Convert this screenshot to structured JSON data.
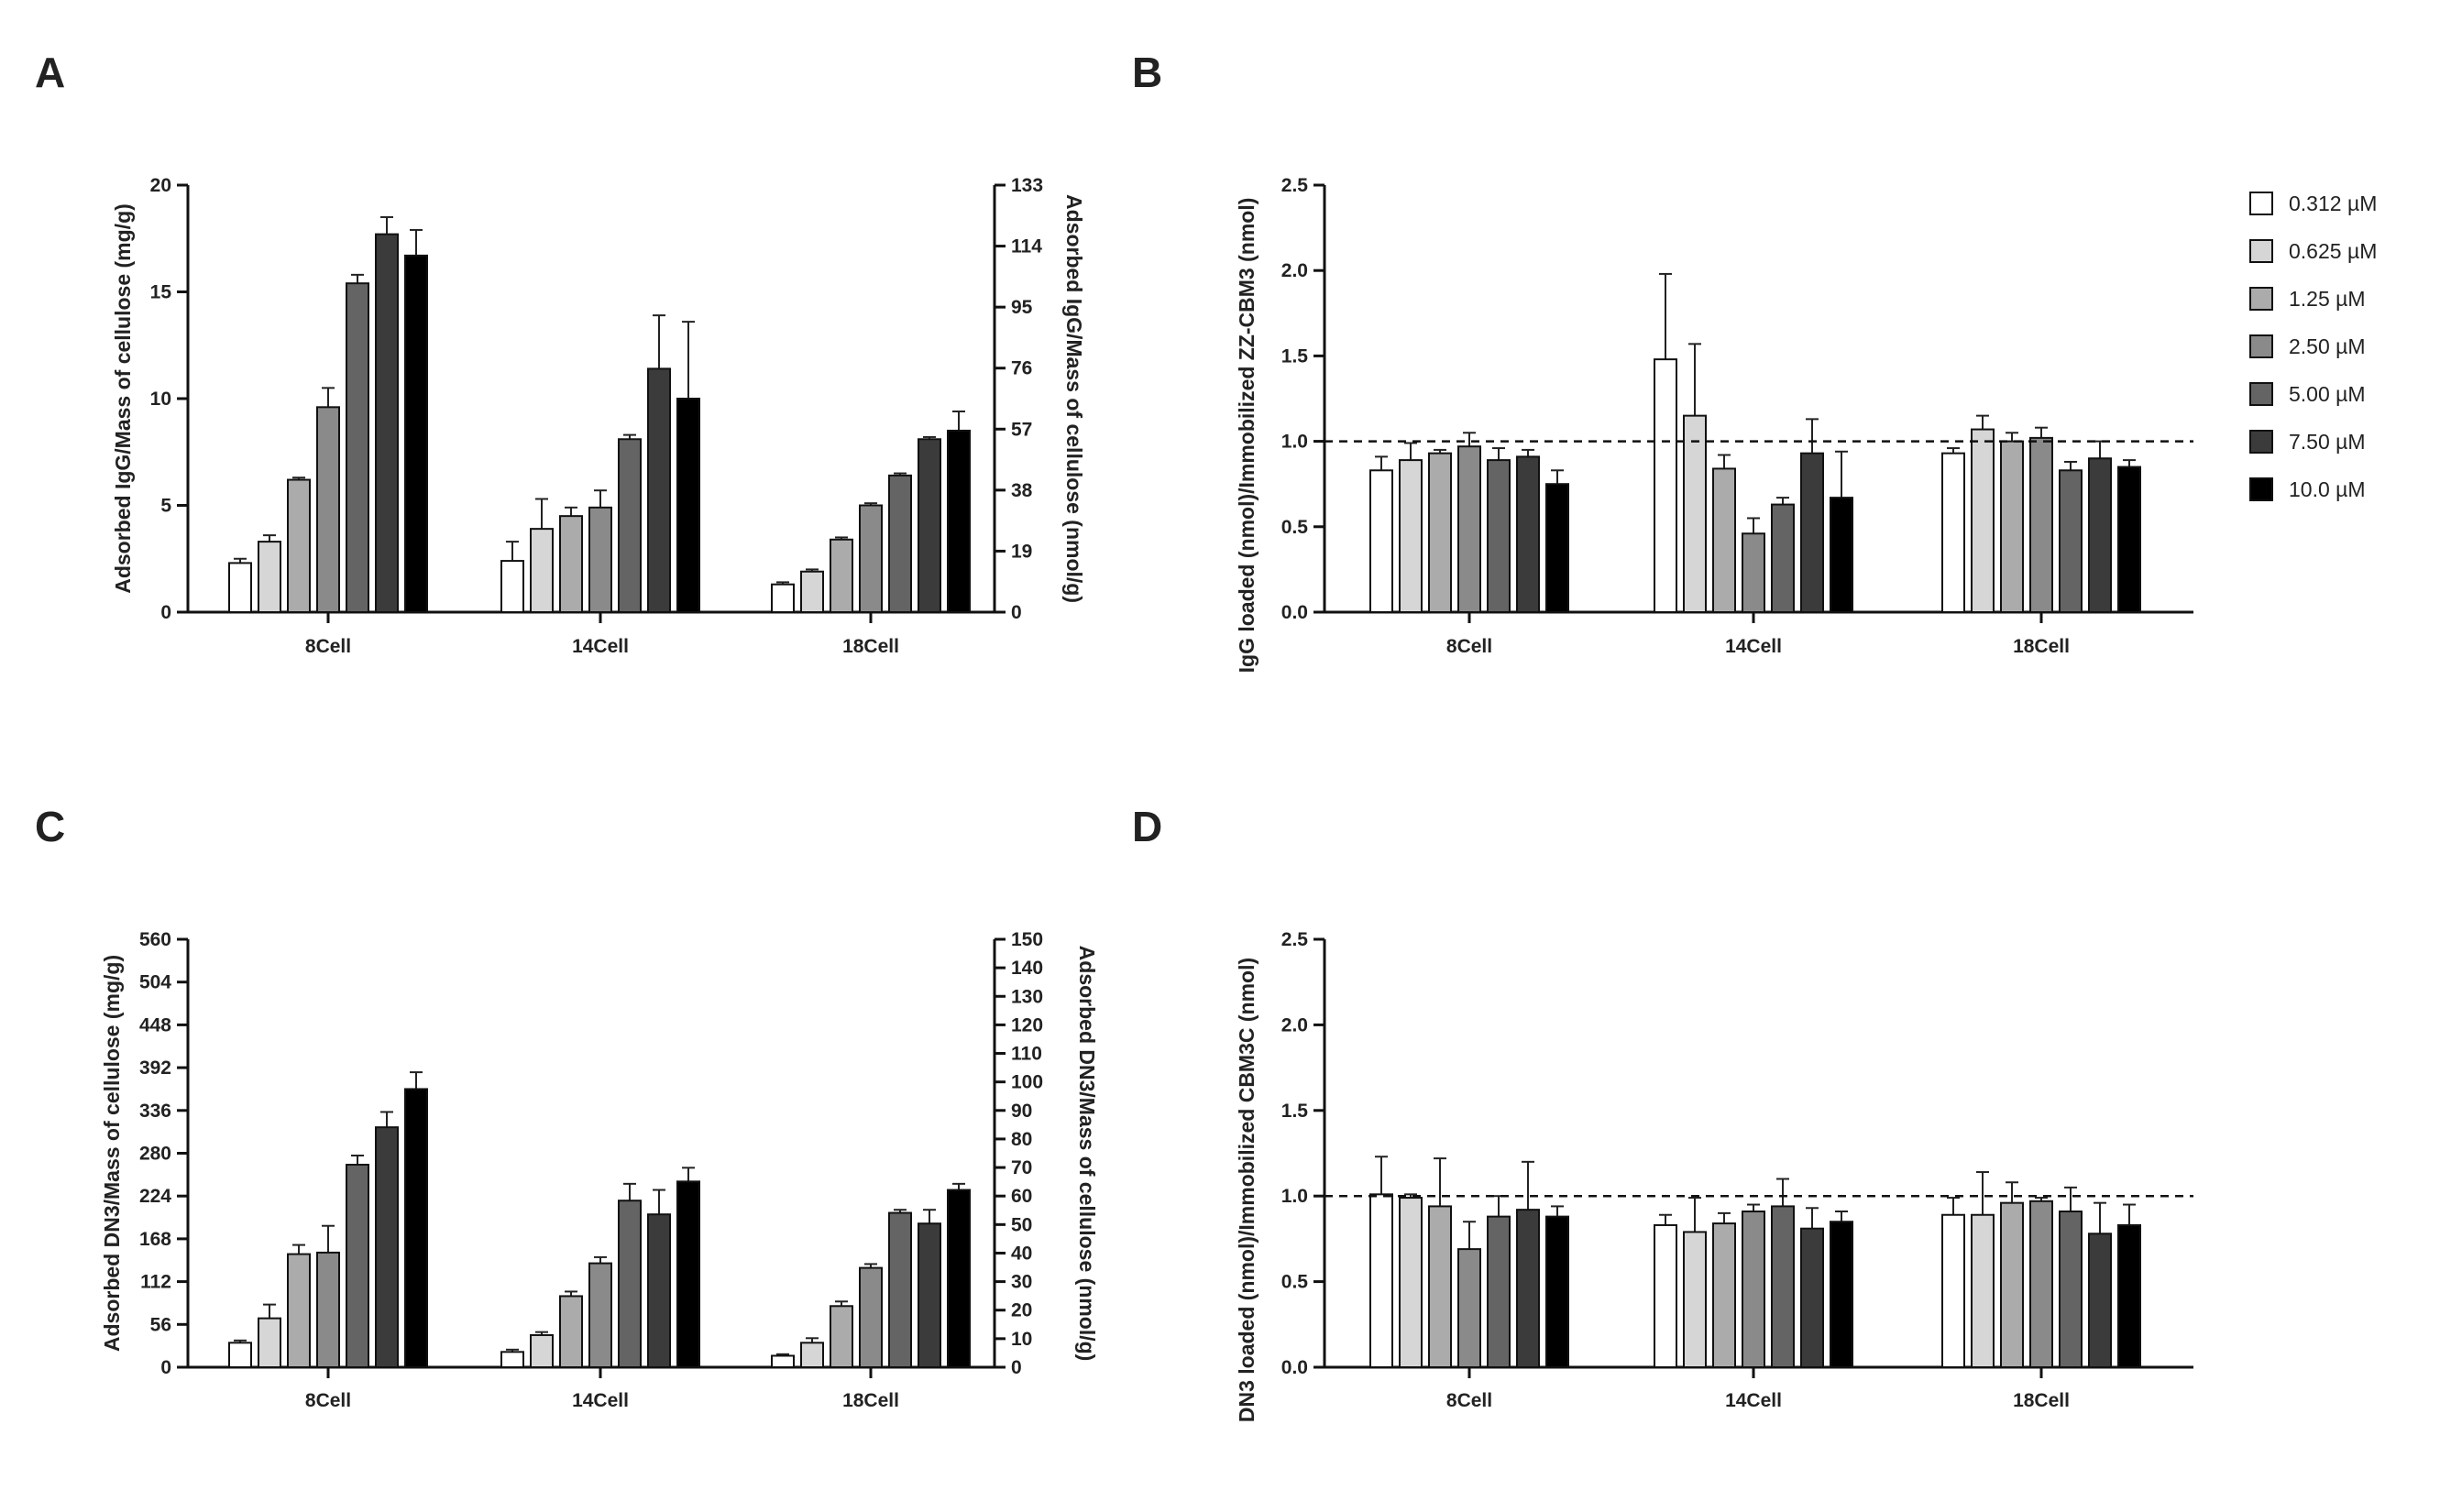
{
  "figure": {
    "legend": {
      "position": "top-right",
      "entries": [
        "0.312 µM",
        "0.625 µM",
        "1.25 µM",
        "2.50 µM",
        "5.00 µM",
        "7.50 µM",
        "10.0 µM"
      ],
      "colors": [
        "#ffffff",
        "#d6d6d6",
        "#ababab",
        "#8a8a8a",
        "#646464",
        "#3b3b3b",
        "#000000"
      ]
    }
  },
  "chart_data": [
    {
      "panel": "A",
      "type": "bar",
      "categories": [
        "8Cell",
        "14Cell",
        "18Cell"
      ],
      "series": [
        {
          "name": "0.312 µM",
          "values": [
            2.3,
            2.4,
            1.3
          ],
          "errors": [
            0.2,
            0.9,
            0.1
          ]
        },
        {
          "name": "0.625 µM",
          "values": [
            3.3,
            3.9,
            1.9
          ],
          "errors": [
            0.3,
            1.4,
            0.1
          ]
        },
        {
          "name": "1.25 µM",
          "values": [
            6.2,
            4.5,
            3.4
          ],
          "errors": [
            0.1,
            0.4,
            0.1
          ]
        },
        {
          "name": "2.50 µM",
          "values": [
            9.6,
            4.9,
            5.0
          ],
          "errors": [
            0.9,
            0.8,
            0.1
          ]
        },
        {
          "name": "5.00 µM",
          "values": [
            15.4,
            8.1,
            6.4
          ],
          "errors": [
            0.4,
            0.2,
            0.1
          ]
        },
        {
          "name": "7.50 µM",
          "values": [
            17.7,
            11.4,
            8.1
          ],
          "errors": [
            0.8,
            2.5,
            0.1
          ]
        },
        {
          "name": "10.0 µM",
          "values": [
            16.7,
            10.0,
            8.5
          ],
          "errors": [
            1.2,
            3.6,
            0.9
          ]
        }
      ],
      "ylim": [
        0,
        20
      ],
      "yticks": [
        0,
        5,
        10,
        15,
        20
      ],
      "ylabel": "Adsorbed IgG/Mass of cellulose (mg/g)",
      "y2lim": [
        0,
        133
      ],
      "y2ticks": [
        0,
        19,
        38,
        57,
        76,
        95,
        114,
        133
      ],
      "y2label": "Adsorbed IgG/Mass of cellulose (nmol/g)",
      "reference_line": null
    },
    {
      "panel": "B",
      "type": "bar",
      "categories": [
        "8Cell",
        "14Cell",
        "18Cell"
      ],
      "series": [
        {
          "name": "0.312 µM",
          "values": [
            0.83,
            1.48,
            0.93
          ],
          "errors": [
            0.08,
            0.5,
            0.03
          ]
        },
        {
          "name": "0.625 µM",
          "values": [
            0.89,
            1.15,
            1.07
          ],
          "errors": [
            0.1,
            0.42,
            0.08
          ]
        },
        {
          "name": "1.25 µM",
          "values": [
            0.93,
            0.84,
            1.0
          ],
          "errors": [
            0.02,
            0.08,
            0.05
          ]
        },
        {
          "name": "2.50 µM",
          "values": [
            0.97,
            0.46,
            1.02
          ],
          "errors": [
            0.08,
            0.09,
            0.06
          ]
        },
        {
          "name": "5.00 µM",
          "values": [
            0.89,
            0.63,
            0.83
          ],
          "errors": [
            0.07,
            0.04,
            0.05
          ]
        },
        {
          "name": "7.50 µM",
          "values": [
            0.91,
            0.93,
            0.9
          ],
          "errors": [
            0.04,
            0.2,
            0.1
          ]
        },
        {
          "name": "10.0 µM",
          "values": [
            0.75,
            0.67,
            0.85
          ],
          "errors": [
            0.08,
            0.27,
            0.04
          ]
        }
      ],
      "ylim": [
        0,
        2.5
      ],
      "yticks": [
        "0.0",
        "0.5",
        "1.0",
        "1.5",
        "2.0",
        "2.5"
      ],
      "ylabel": "IgG loaded (nmol)/Immobilized ZZ-CBM3 (nmol)",
      "y2lim": null,
      "y2ticks": null,
      "y2label": "",
      "reference_line": 1.0
    },
    {
      "panel": "C",
      "type": "bar",
      "categories": [
        "8Cell",
        "14Cell",
        "18Cell"
      ],
      "series": [
        {
          "name": "0.312 µM",
          "values": [
            32,
            20,
            15
          ],
          "errors": [
            3,
            3,
            2
          ]
        },
        {
          "name": "0.625 µM",
          "values": [
            64,
            42,
            32
          ],
          "errors": [
            18,
            4,
            6
          ]
        },
        {
          "name": "1.25 µM",
          "values": [
            148,
            93,
            80
          ],
          "errors": [
            12,
            6,
            6
          ]
        },
        {
          "name": "2.50 µM",
          "values": [
            150,
            136,
            130
          ],
          "errors": [
            35,
            8,
            5
          ]
        },
        {
          "name": "5.00 µM",
          "values": [
            265,
            218,
            202
          ],
          "errors": [
            12,
            22,
            4
          ]
        },
        {
          "name": "7.50 µM",
          "values": [
            314,
            200,
            188
          ],
          "errors": [
            20,
            32,
            18
          ]
        },
        {
          "name": "10.0 µM",
          "values": [
            364,
            243,
            232
          ],
          "errors": [
            22,
            18,
            8
          ]
        }
      ],
      "ylim": [
        0,
        560
      ],
      "yticks": [
        0,
        56,
        112,
        168,
        224,
        280,
        336,
        392,
        448,
        504,
        560
      ],
      "ylabel": "Adsorbed DN3/Mass of cellulose (mg/g)",
      "y2lim": [
        0,
        150
      ],
      "y2ticks": [
        0,
        10,
        20,
        30,
        40,
        50,
        60,
        70,
        80,
        90,
        100,
        110,
        120,
        130,
        140,
        150
      ],
      "y2label": "Adsorbed DN3/Mass of cellulose (nmol/g)",
      "reference_line": null
    },
    {
      "panel": "D",
      "type": "bar",
      "categories": [
        "8Cell",
        "14Cell",
        "18Cell"
      ],
      "series": [
        {
          "name": "0.312 µM",
          "values": [
            1.01,
            0.83,
            0.89
          ],
          "errors": [
            0.22,
            0.06,
            0.1
          ]
        },
        {
          "name": "0.625 µM",
          "values": [
            0.99,
            0.79,
            0.89
          ],
          "errors": [
            0.02,
            0.2,
            0.25
          ]
        },
        {
          "name": "1.25 µM",
          "values": [
            0.94,
            0.84,
            0.96
          ],
          "errors": [
            0.28,
            0.06,
            0.12
          ]
        },
        {
          "name": "2.50 µM",
          "values": [
            0.69,
            0.91,
            0.97
          ],
          "errors": [
            0.16,
            0.04,
            0.02
          ]
        },
        {
          "name": "5.00 µM",
          "values": [
            0.88,
            0.94,
            0.91
          ],
          "errors": [
            0.12,
            0.16,
            0.14
          ]
        },
        {
          "name": "7.50 µM",
          "values": [
            0.92,
            0.81,
            0.78
          ],
          "errors": [
            0.28,
            0.12,
            0.18
          ]
        },
        {
          "name": "10.0 µM",
          "values": [
            0.88,
            0.85,
            0.83
          ],
          "errors": [
            0.06,
            0.06,
            0.12
          ]
        }
      ],
      "ylim": [
        0,
        2.5
      ],
      "yticks": [
        "0.0",
        "0.5",
        "1.0",
        "1.5",
        "2.0",
        "2.5"
      ],
      "ylabel": "DN3 loaded (nmol)/Immobilized CBM3C (nmol)",
      "y2lim": null,
      "y2ticks": null,
      "y2label": "",
      "reference_line": 1.0
    }
  ]
}
